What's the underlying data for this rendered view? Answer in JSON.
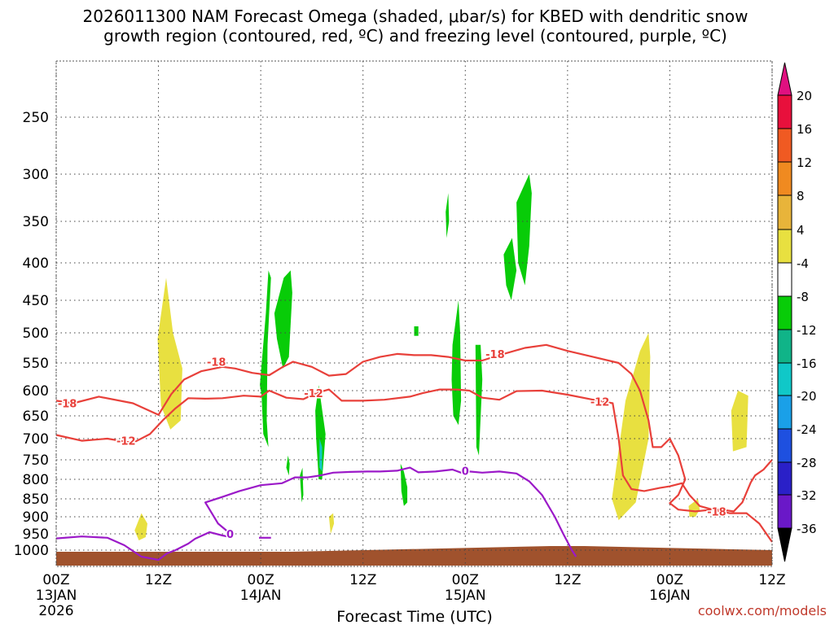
{
  "title_line1": "2026011300 NAM Forecast Omega (shaded, μbar/s) for KBED with dendritic snow",
  "title_line2": "growth region (contoured, red, ºC) and freezing level (contoured, purple, ºC)",
  "xlabel": "Forecast Time (UTC)",
  "credit": "coolwx.com/models",
  "colors": {
    "dgz": "#e8403a",
    "freezing": "#9b19c8",
    "ground": "#a0522d",
    "grid": "#444444"
  },
  "chart_data": {
    "type": "heatmap",
    "title": "2026011300 NAM Forecast Omega for KBED",
    "x_range_hours": [
      0,
      84
    ],
    "y_range_hPa": [
      1050,
      200
    ],
    "x_ticks": [
      {
        "hour": 0,
        "l1": "00Z",
        "l2": "13JAN",
        "l3": "2026"
      },
      {
        "hour": 12,
        "l1": "12Z",
        "l2": "",
        "l3": ""
      },
      {
        "hour": 24,
        "l1": "00Z",
        "l2": "14JAN",
        "l3": ""
      },
      {
        "hour": 36,
        "l1": "12Z",
        "l2": "",
        "l3": ""
      },
      {
        "hour": 48,
        "l1": "00Z",
        "l2": "15JAN",
        "l3": ""
      },
      {
        "hour": 60,
        "l1": "12Z",
        "l2": "",
        "l3": ""
      },
      {
        "hour": 72,
        "l1": "00Z",
        "l2": "16JAN",
        "l3": ""
      },
      {
        "hour": 84,
        "l1": "12Z",
        "l2": "",
        "l3": ""
      }
    ],
    "y_ticks": [
      250,
      300,
      350,
      400,
      450,
      500,
      550,
      600,
      650,
      700,
      750,
      800,
      850,
      900,
      950,
      1000
    ],
    "colorbar": {
      "levels": [
        "20",
        "16",
        "12",
        "8",
        "4",
        "-4",
        "-8",
        "-12",
        "-16",
        "-20",
        "-24",
        "-28",
        "-32",
        "-36"
      ],
      "colors": [
        "#e8103c",
        "#f05a22",
        "#f08a20",
        "#e8b43a",
        "#e8e040",
        "#ffffff",
        "#08cc08",
        "#10b488",
        "#10c8c8",
        "#1aa0e8",
        "#1e50e0",
        "#2a20c8",
        "#6a18c8",
        "#9a10c8",
        "#a8a8a8",
        "#000000"
      ]
    },
    "omega_regions": [
      {
        "sign": "up",
        "color": "#08cc08",
        "pts": [
          [
            23.9,
            590
          ],
          [
            24.6,
            470
          ],
          [
            24.9,
            410
          ],
          [
            25.2,
            420
          ],
          [
            24.8,
            520
          ],
          [
            24.7,
            660
          ],
          [
            24.9,
            720
          ],
          [
            24.3,
            690
          ],
          [
            24.1,
            610
          ]
        ]
      },
      {
        "sign": "up",
        "color": "#08cc08",
        "pts": [
          [
            25.6,
            470
          ],
          [
            26.7,
            420
          ],
          [
            27.5,
            410
          ],
          [
            27.7,
            440
          ],
          [
            27.3,
            540
          ],
          [
            26.6,
            560
          ],
          [
            25.9,
            510
          ]
        ]
      },
      {
        "sign": "up",
        "color": "#08cc08",
        "pts": [
          [
            30.4,
            640
          ],
          [
            30.8,
            590
          ],
          [
            31.6,
            690
          ],
          [
            31.2,
            800
          ],
          [
            30.8,
            800
          ],
          [
            30.5,
            700
          ]
        ]
      },
      {
        "sign": "up",
        "color": "#10c8c8",
        "pts": [
          [
            30.9,
            700
          ],
          [
            31.2,
            720
          ],
          [
            31.2,
            780
          ],
          [
            30.9,
            770
          ]
        ]
      },
      {
        "sign": "up",
        "color": "#08cc08",
        "pts": [
          [
            27.2,
            740
          ],
          [
            27.4,
            760
          ],
          [
            27.3,
            790
          ],
          [
            27.0,
            770
          ]
        ]
      },
      {
        "sign": "up",
        "color": "#08cc08",
        "pts": [
          [
            28.6,
            790
          ],
          [
            28.9,
            770
          ],
          [
            29.0,
            840
          ],
          [
            28.8,
            860
          ]
        ]
      },
      {
        "sign": "up",
        "color": "#08cc08",
        "pts": [
          [
            46.5,
            520
          ],
          [
            47.2,
            450
          ],
          [
            47.4,
            500
          ],
          [
            47.5,
            620
          ],
          [
            47.2,
            670
          ],
          [
            46.6,
            650
          ],
          [
            46.4,
            580
          ]
        ]
      },
      {
        "sign": "up",
        "color": "#08cc08",
        "pts": [
          [
            40.4,
            760
          ],
          [
            40.8,
            780
          ],
          [
            41.2,
            820
          ],
          [
            41.2,
            860
          ],
          [
            40.8,
            870
          ],
          [
            40.5,
            830
          ]
        ]
      },
      {
        "sign": "up",
        "color": "#08cc08",
        "pts": [
          [
            49.2,
            520
          ],
          [
            49.8,
            520
          ],
          [
            50.0,
            580
          ],
          [
            49.6,
            740
          ],
          [
            49.3,
            720
          ]
        ]
      },
      {
        "sign": "up",
        "color": "#08cc08",
        "pts": [
          [
            52.5,
            390
          ],
          [
            53.5,
            370
          ],
          [
            54.0,
            410
          ],
          [
            53.4,
            450
          ],
          [
            52.8,
            430
          ]
        ]
      },
      {
        "sign": "up",
        "color": "#08cc08",
        "pts": [
          [
            54.0,
            330
          ],
          [
            55.0,
            310
          ],
          [
            55.5,
            300
          ],
          [
            55.8,
            320
          ],
          [
            55.5,
            380
          ],
          [
            55.0,
            430
          ],
          [
            54.2,
            400
          ]
        ]
      },
      {
        "sign": "up",
        "color": "#08cc08",
        "pts": [
          [
            45.7,
            340
          ],
          [
            46.0,
            320
          ],
          [
            46.1,
            350
          ],
          [
            45.8,
            370
          ]
        ]
      },
      {
        "sign": "up",
        "color": "#08cc08",
        "pts": [
          [
            42.0,
            490
          ],
          [
            42.5,
            490
          ],
          [
            42.5,
            505
          ],
          [
            42.0,
            505
          ]
        ]
      },
      {
        "sign": "down",
        "color": "#e8e040",
        "pts": [
          [
            11.9,
            510
          ],
          [
            12.9,
            420
          ],
          [
            13.7,
            500
          ],
          [
            14.8,
            560
          ],
          [
            14.6,
            660
          ],
          [
            13.4,
            680
          ],
          [
            12.3,
            630
          ]
        ]
      },
      {
        "sign": "down",
        "color": "#e8e040",
        "pts": [
          [
            9.2,
            940
          ],
          [
            10.0,
            890
          ],
          [
            10.7,
            920
          ],
          [
            10.5,
            960
          ],
          [
            9.7,
            970
          ]
        ]
      },
      {
        "sign": "down",
        "color": "#e8e040",
        "pts": [
          [
            32.0,
            900
          ],
          [
            32.5,
            890
          ],
          [
            32.6,
            920
          ],
          [
            32.2,
            950
          ]
        ]
      },
      {
        "sign": "down",
        "color": "#e8e040",
        "pts": [
          [
            65.2,
            850
          ],
          [
            66.8,
            620
          ],
          [
            68.5,
            530
          ],
          [
            69.5,
            500
          ],
          [
            69.7,
            540
          ],
          [
            69.5,
            700
          ],
          [
            68.0,
            860
          ],
          [
            66.0,
            910
          ]
        ]
      },
      {
        "sign": "down",
        "color": "#e8e040",
        "pts": [
          [
            74.2,
            870
          ],
          [
            75.3,
            850
          ],
          [
            75.5,
            880
          ],
          [
            75.0,
            900
          ],
          [
            74.3,
            900
          ]
        ]
      },
      {
        "sign": "down",
        "color": "#e8e040",
        "pts": [
          [
            79.2,
            640
          ],
          [
            80.0,
            600
          ],
          [
            81.2,
            610
          ],
          [
            81.0,
            720
          ],
          [
            79.4,
            730
          ]
        ]
      }
    ],
    "contours": [
      {
        "name": "dgz-minus12",
        "color": "#e8403a",
        "label": "-12",
        "label_at": [
          8.2,
          705
        ],
        "pts": [
          [
            0,
            692
          ],
          [
            3,
            705
          ],
          [
            6,
            700
          ],
          [
            9,
            710
          ],
          [
            11,
            690
          ],
          [
            12.5,
            660
          ],
          [
            14,
            635
          ],
          [
            15.5,
            615
          ],
          [
            17.5,
            616
          ],
          [
            19.5,
            615
          ],
          [
            22,
            610
          ],
          [
            24,
            612
          ],
          [
            25,
            600
          ],
          [
            27,
            614
          ],
          [
            29,
            617
          ],
          [
            30.5,
            605
          ],
          [
            32,
            598
          ],
          [
            33.5,
            620
          ],
          [
            36,
            620
          ],
          [
            38.5,
            618
          ],
          [
            41.5,
            612
          ],
          [
            43,
            605
          ],
          [
            45,
            598
          ],
          [
            47,
            598
          ],
          [
            48.5,
            600
          ],
          [
            50,
            614
          ],
          [
            52,
            618
          ],
          [
            54,
            601
          ],
          [
            57,
            600
          ],
          [
            60,
            608
          ],
          [
            63,
            618
          ],
          [
            65.3,
            625
          ],
          [
            66,
            700
          ],
          [
            66.5,
            790
          ],
          [
            67.5,
            825
          ],
          [
            69,
            830
          ],
          [
            70.8,
            822
          ],
          [
            72,
            818
          ],
          [
            73.4,
            810
          ],
          [
            74.3,
            840
          ],
          [
            75.5,
            870
          ],
          [
            77,
            880
          ],
          [
            78,
            880
          ],
          [
            79.5,
            885
          ],
          [
            80.5,
            860
          ],
          [
            81.5,
            808
          ],
          [
            82,
            790
          ],
          [
            83,
            775
          ],
          [
            84,
            750
          ]
        ]
      },
      {
        "name": "dgz-minus18",
        "color": "#e8403a",
        "label": "-18",
        "label_at": [
          1.3,
          625
        ],
        "pts": [
          [
            0,
            620
          ],
          [
            2,
            625
          ],
          [
            5,
            612
          ],
          [
            9,
            625
          ],
          [
            12,
            648
          ],
          [
            13.5,
            607
          ],
          [
            15,
            580
          ],
          [
            17,
            565
          ],
          [
            19.5,
            557
          ],
          [
            21,
            560
          ],
          [
            23,
            568
          ],
          [
            25,
            572
          ],
          [
            26.5,
            558
          ],
          [
            27.8,
            548
          ],
          [
            30,
            557
          ],
          [
            32,
            573
          ],
          [
            34,
            570
          ],
          [
            36,
            548
          ],
          [
            38,
            540
          ],
          [
            40,
            535
          ],
          [
            42,
            537
          ],
          [
            44,
            537
          ],
          [
            46,
            540
          ],
          [
            48,
            546
          ],
          [
            50,
            546
          ],
          [
            52,
            537
          ],
          [
            55,
            525
          ],
          [
            57.5,
            520
          ],
          [
            60,
            530
          ],
          [
            63,
            540
          ],
          [
            66,
            550
          ],
          [
            67.5,
            570
          ],
          [
            68.5,
            600
          ],
          [
            69.5,
            660
          ],
          [
            70,
            720
          ],
          [
            71,
            720
          ],
          [
            72,
            700
          ],
          [
            73,
            740
          ],
          [
            73.8,
            800
          ],
          [
            73,
            840
          ],
          [
            72,
            862
          ],
          [
            73,
            880
          ],
          [
            75,
            885
          ],
          [
            77,
            880
          ],
          [
            79,
            890
          ],
          [
            81,
            890
          ],
          [
            82.5,
            920
          ],
          [
            84,
            975
          ]
        ]
      },
      {
        "name": "freezing-0",
        "color": "#9b19c8",
        "label": "0",
        "label_at": [
          20.4,
          950
        ],
        "pts": [
          [
            0,
            964
          ],
          [
            3,
            958
          ],
          [
            6,
            962
          ],
          [
            8,
            985
          ],
          [
            10,
            1020
          ],
          [
            12,
            1030
          ],
          [
            13,
            1010
          ],
          [
            14,
            1000
          ],
          [
            15.5,
            980
          ],
          [
            16.3,
            965
          ],
          [
            18,
            945
          ],
          [
            19.5,
            955
          ],
          [
            20.5,
            960
          ],
          [
            20.2,
            945
          ],
          [
            19,
            920
          ],
          [
            18,
            880
          ],
          [
            17.5,
            860
          ],
          [
            19.5,
            845
          ],
          [
            21.5,
            830
          ],
          [
            24,
            815
          ],
          [
            26.5,
            810
          ],
          [
            28,
            795
          ],
          [
            29.5,
            795
          ],
          [
            31,
            790
          ],
          [
            32.5,
            783
          ],
          [
            34.5,
            781
          ],
          [
            36.5,
            780
          ],
          [
            38,
            780
          ],
          [
            40,
            778
          ],
          [
            41.5,
            770
          ],
          [
            42.5,
            782
          ],
          [
            44.5,
            780
          ],
          [
            46.5,
            775
          ],
          [
            47.5,
            783
          ],
          [
            48.5,
            780
          ],
          [
            50,
            783
          ],
          [
            52,
            780
          ],
          [
            54,
            785
          ],
          [
            55.5,
            805
          ],
          [
            57,
            840
          ],
          [
            58.5,
            900
          ],
          [
            59.5,
            950
          ],
          [
            60.5,
            1000
          ],
          [
            61,
            1020
          ]
        ]
      },
      {
        "name": "freezing-0-dot",
        "color": "#9b19c8",
        "label": "",
        "label_at": [
          0,
          0
        ],
        "pts": [
          [
            23.8,
            962
          ],
          [
            25.2,
            962
          ]
        ]
      }
    ]
  }
}
